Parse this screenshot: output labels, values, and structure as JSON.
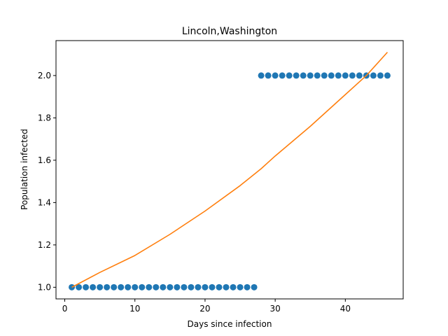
{
  "chart_data": {
    "type": "scatter",
    "title": "Lincoln,Washington",
    "xlabel": "Days since infection",
    "ylabel": "Population infected",
    "xlim": [
      -1.25,
      48.25
    ],
    "ylim": [
      0.945,
      2.165
    ],
    "x_ticks": [
      0,
      10,
      20,
      30,
      40
    ],
    "y_ticks": [
      1.0,
      1.2,
      1.4,
      1.6,
      1.8,
      2.0
    ],
    "x_tick_labels": [
      "0",
      "10",
      "20",
      "30",
      "40"
    ],
    "y_tick_labels": [
      "1.0",
      "1.2",
      "1.4",
      "1.6",
      "1.8",
      "2.0"
    ],
    "grid": false,
    "legend": "none",
    "series": [
      {
        "kind": "scatter",
        "color": "#1f77b4",
        "x": [
          1,
          2,
          3,
          4,
          5,
          6,
          7,
          8,
          9,
          10,
          11,
          12,
          13,
          14,
          15,
          16,
          17,
          18,
          19,
          20,
          21,
          22,
          23,
          24,
          25,
          26,
          27,
          28,
          29,
          30,
          31,
          32,
          33,
          34,
          35,
          36,
          37,
          38,
          39,
          40,
          41,
          42,
          43,
          44,
          45,
          46
        ],
        "y": [
          1,
          1,
          1,
          1,
          1,
          1,
          1,
          1,
          1,
          1,
          1,
          1,
          1,
          1,
          1,
          1,
          1,
          1,
          1,
          1,
          1,
          1,
          1,
          1,
          1,
          1,
          1,
          2,
          2,
          2,
          2,
          2,
          2,
          2,
          2,
          2,
          2,
          2,
          2,
          2,
          2,
          2,
          2,
          2,
          2,
          2
        ]
      },
      {
        "kind": "line",
        "color": "#ff7f0e",
        "x": [
          1,
          5,
          10,
          15,
          20,
          25,
          28,
          30,
          35,
          40,
          43,
          46
        ],
        "y": [
          1.0,
          1.07,
          1.15,
          1.25,
          1.36,
          1.48,
          1.56,
          1.62,
          1.76,
          1.91,
          2.0,
          2.11
        ]
      }
    ]
  }
}
